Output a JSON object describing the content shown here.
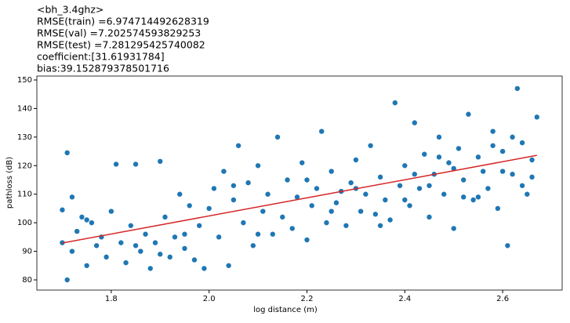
{
  "chart_data": {
    "type": "scatter",
    "title": [
      "<bh_3.4ghz>",
      "RMSE(train) =6.974714492628319",
      "RMSE(val) =7.202574593829253",
      "RMSE(test) =7.281295425740082",
      "coefficient:[31.61931784]",
      "bias:39.152879378501716"
    ],
    "x_label": "log distance (m)",
    "y_label": "pathloss (dB)",
    "xlim": [
      1.648,
      2.7216
    ],
    "ylim": [
      76.43,
      151.37
    ],
    "xticks": [
      1.8,
      {
        "value": 2,
        "label": "2.0"
      },
      2.2,
      2.4,
      2.6
    ],
    "yticks": [
      80,
      90,
      100,
      110,
      120,
      130,
      140,
      150
    ],
    "points": {
      "color": "#1f77b4",
      "x": [
        1.7,
        1.7,
        1.71,
        1.71,
        1.72,
        1.72,
        1.73,
        1.74,
        1.75,
        1.76,
        1.77,
        1.78,
        1.79,
        1.8,
        1.81,
        1.82,
        1.83,
        1.84,
        1.85,
        1.86,
        1.87,
        1.88,
        1.89,
        1.9,
        1.91,
        1.92,
        1.93,
        1.94,
        1.95,
        1.96,
        1.97,
        1.98,
        1.99,
        2.0,
        2.01,
        2.02,
        2.03,
        2.04,
        2.05,
        2.06,
        2.07,
        2.08,
        2.09,
        2.1,
        2.11,
        2.12,
        2.13,
        2.14,
        2.15,
        2.16,
        2.17,
        2.18,
        2.19,
        2.2,
        2.21,
        2.22,
        2.23,
        2.24,
        2.25,
        2.26,
        2.27,
        2.28,
        2.29,
        2.3,
        2.31,
        2.32,
        2.33,
        2.34,
        2.35,
        2.36,
        2.37,
        2.38,
        2.39,
        2.4,
        2.41,
        2.42,
        2.43,
        2.44,
        2.45,
        2.46,
        2.47,
        2.48,
        2.49,
        2.5,
        2.51,
        2.52,
        2.53,
        2.54,
        2.55,
        2.56,
        2.57,
        2.58,
        2.59,
        2.6,
        2.61,
        2.62,
        2.63,
        2.64,
        2.65,
        2.66,
        2.67,
        2.45,
        2.5,
        2.55,
        2.6,
        2.62,
        2.64,
        2.4,
        2.35,
        2.3,
        2.25,
        2.2,
        2.1,
        2.05,
        1.95,
        1.9,
        1.85,
        1.75,
        2.58,
        2.66,
        2.52,
        2.47,
        2.42
      ],
      "y": [
        104.5,
        93,
        80,
        124.5,
        109,
        90,
        97,
        102,
        85,
        100,
        92,
        95,
        88,
        104,
        120.5,
        93,
        86,
        99,
        120.5,
        90,
        96,
        84,
        93,
        121.5,
        102,
        88,
        95,
        110,
        91,
        106,
        87,
        99,
        84,
        105,
        112,
        95,
        118,
        85,
        108,
        127,
        100,
        114,
        92,
        120,
        104,
        110,
        96,
        130,
        102,
        115,
        98,
        109,
        121,
        94,
        106,
        112,
        132,
        100,
        118,
        107,
        111,
        99,
        114,
        122,
        104,
        110,
        127,
        103,
        116,
        108,
        101,
        142,
        113,
        120,
        106,
        135,
        112,
        124,
        102,
        117,
        130,
        110,
        121,
        98,
        126,
        115,
        138,
        108,
        123,
        118,
        112,
        132,
        105,
        125,
        92,
        117,
        147,
        128,
        110,
        122,
        137,
        113,
        119,
        109,
        118,
        130,
        113,
        108,
        99,
        112,
        104,
        115,
        96,
        113,
        96,
        89,
        92,
        101,
        127,
        116,
        109,
        123,
        117
      ]
    },
    "fit": {
      "color": "#d62728",
      "x": [
        1.7,
        2.67
      ],
      "y": [
        92.9,
        123.6
      ]
    }
  }
}
